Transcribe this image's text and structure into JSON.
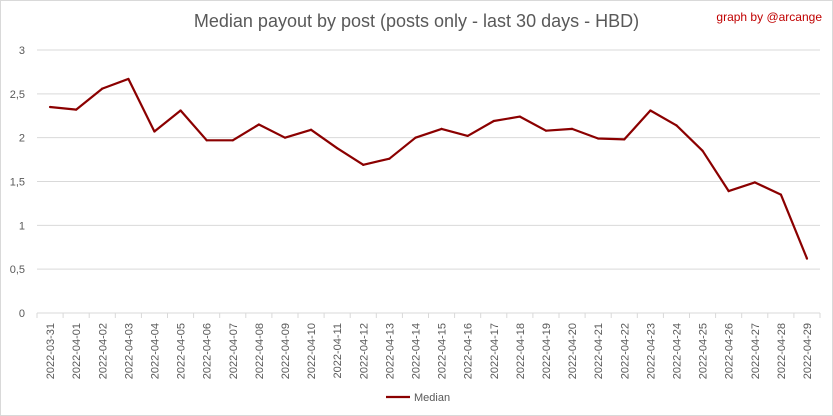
{
  "credit": "graph by @arcange",
  "colors": {
    "series": "#8b0000",
    "credit": "#c00000",
    "grid": "#d9d9d9",
    "text": "#595959"
  },
  "chart_data": {
    "type": "line",
    "title": "Median payout by post (posts only - last 30 days - HBD)",
    "xlabel": "",
    "ylabel": "",
    "ylim": [
      0,
      3
    ],
    "yticks": [
      "0",
      "0,5",
      "1",
      "1,5",
      "2",
      "2,5",
      "3"
    ],
    "grid": true,
    "legend_position": "bottom",
    "categories": [
      "2022-03-31",
      "2022-04-01",
      "2022-04-02",
      "2022-04-03",
      "2022-04-04",
      "2022-04-05",
      "2022-04-06",
      "2022-04-07",
      "2022-04-08",
      "2022-04-09",
      "2022-04-10",
      "2022-04-11",
      "2022-04-12",
      "2022-04-13",
      "2022-04-14",
      "2022-04-15",
      "2022-04-16",
      "2022-04-17",
      "2022-04-18",
      "2022-04-19",
      "2022-04-20",
      "2022-04-21",
      "2022-04-22",
      "2022-04-23",
      "2022-04-24",
      "2022-04-25",
      "2022-04-26",
      "2022-04-27",
      "2022-04-28",
      "2022-04-29"
    ],
    "series": [
      {
        "name": "Median",
        "values": [
          2.35,
          2.32,
          2.56,
          2.67,
          2.07,
          2.31,
          1.97,
          1.97,
          2.15,
          2.0,
          2.09,
          1.88,
          1.69,
          1.76,
          2.0,
          2.1,
          2.02,
          2.19,
          2.24,
          2.08,
          2.1,
          1.99,
          1.98,
          2.31,
          2.14,
          1.85,
          1.39,
          1.49,
          1.35,
          0.62
        ]
      }
    ]
  }
}
